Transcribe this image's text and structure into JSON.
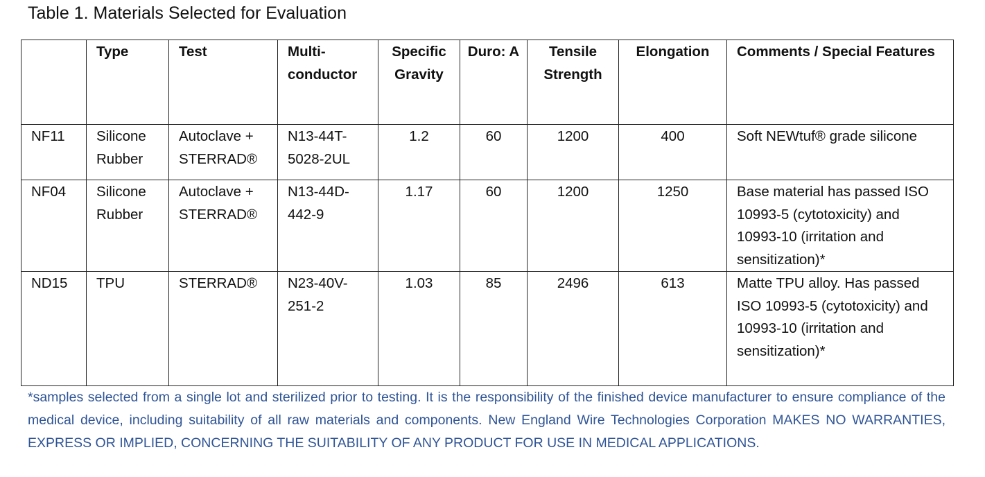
{
  "title": "Table 1. Materials Selected for Evaluation",
  "table": {
    "header": [
      "",
      "Type",
      "Test",
      "Multi-conductor",
      "Specific Gravity",
      "Duro: A",
      "Tensile Strength",
      "Elongation",
      "Comments / Special Features"
    ],
    "rows": [
      [
        "NF11",
        "Silicone Rubber",
        "Autoclave + STERRAD®",
        "N13-44T-5028-2UL",
        "1.2",
        "60",
        "1200",
        "400",
        "Soft NEWtuf® grade silicone"
      ],
      [
        "NF04",
        "Silicone Rubber",
        "Autoclave + STERRAD®",
        "N13-44D-442-9",
        "1.17",
        "60",
        "1200",
        "1250",
        "Base material has passed ISO 10993-5 (cytotoxicity) and 10993-10 (irritation and sensitization)*"
      ],
      [
        "ND15",
        "TPU",
        "STERRAD®",
        "N23-40V-251-2",
        "1.03",
        "85",
        "2496",
        "613",
        "Matte TPU alloy. Has passed ISO 10993-5 (cytotoxicity) and 10993-10 (irritation and sensitization)*"
      ]
    ]
  },
  "footnote": "*samples selected from a single lot and sterilized prior to testing.  It is the responsibility of the finished device manufacturer to ensure compliance of the medical device, including suitability of all raw materials and components. New England Wire Technologies Corporation MAKES NO WARRANTIES, EXPRESS OR IMPLIED, CONCERNING THE SUITABILITY OF ANY PRODUCT FOR USE IN MEDICAL APPLICATIONS."
}
